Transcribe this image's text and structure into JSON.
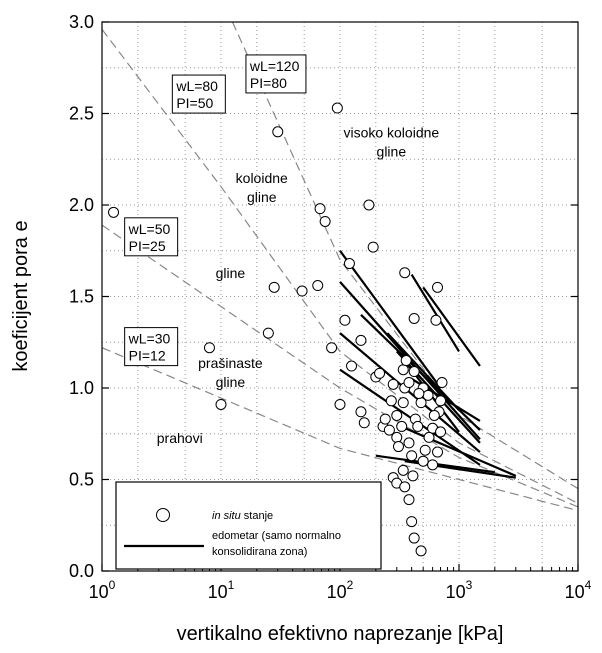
{
  "chart_data": {
    "type": "scatter",
    "xlabel": "vertikalno efektivno naprezanje [kPa]",
    "ylabel": "koeficijent pora e",
    "x_scale": "log",
    "xlim": [
      1,
      10000
    ],
    "ylim": [
      0,
      3
    ],
    "x_ticks": [
      {
        "value": 1,
        "base": "10",
        "exp": "0"
      },
      {
        "value": 10,
        "base": "10",
        "exp": "1"
      },
      {
        "value": 100,
        "base": "10",
        "exp": "2"
      },
      {
        "value": 1000,
        "base": "10",
        "exp": "3"
      },
      {
        "value": 10000,
        "base": "10",
        "exp": "4"
      }
    ],
    "y_ticks": [
      {
        "value": 0.0,
        "label": "0.0"
      },
      {
        "value": 0.5,
        "label": "0.5"
      },
      {
        "value": 1.0,
        "label": "1.0"
      },
      {
        "value": 1.5,
        "label": "1.5"
      },
      {
        "value": 2.0,
        "label": "2.0"
      },
      {
        "value": 2.5,
        "label": "2.5"
      },
      {
        "value": 3.0,
        "label": "3.0"
      }
    ],
    "grid": true,
    "boundary_lines": [
      {
        "points": [
          [
            1,
            1.22
          ],
          [
            100,
            0.67
          ],
          [
            1000,
            0.5
          ],
          [
            10000,
            0.33
          ]
        ]
      },
      {
        "points": [
          [
            1,
            1.89
          ],
          [
            100,
            1.0
          ],
          [
            1000,
            0.62
          ],
          [
            10000,
            0.35
          ]
        ]
      },
      {
        "points": [
          [
            1,
            2.96
          ],
          [
            10,
            2.1
          ],
          [
            100,
            1.2
          ],
          [
            1000,
            0.7
          ],
          [
            10000,
            0.37
          ]
        ]
      },
      {
        "points": [
          [
            12.5,
            3.0
          ],
          [
            100,
            1.7
          ],
          [
            1000,
            0.85
          ],
          [
            10000,
            0.45
          ]
        ]
      }
    ],
    "boundary_labels": [
      {
        "line1": "wL=30",
        "line2": "PI=12",
        "x": 1.55,
        "y": 1.33
      },
      {
        "line1": "wL=50",
        "line2": "PI=25",
        "x": 1.55,
        "y": 1.93
      },
      {
        "line1": "wL=80",
        "line2": "PI=50",
        "x": 3.9,
        "y": 2.71
      },
      {
        "line1": "wL=120",
        "line2": "PI=80",
        "x": 16.2,
        "y": 2.82
      }
    ],
    "region_labels": [
      {
        "lines": [
          "prahovi"
        ],
        "x": 4.5,
        "y": 0.7
      },
      {
        "lines": [
          "prašinaste",
          "gline"
        ],
        "x": 12,
        "y": 1.11
      },
      {
        "lines": [
          "gline"
        ],
        "x": 12,
        "y": 1.6
      },
      {
        "lines": [
          "koloidne",
          "gline"
        ],
        "x": 22,
        "y": 2.12
      },
      {
        "lines": [
          "visoko koloidne",
          "gline"
        ],
        "x": 270,
        "y": 2.37
      }
    ],
    "in_situ_points": [
      [
        1.25,
        1.96
      ],
      [
        8,
        1.22
      ],
      [
        10,
        0.91
      ],
      [
        25,
        1.3
      ],
      [
        28,
        1.55
      ],
      [
        30,
        2.4
      ],
      [
        48,
        1.53
      ],
      [
        65,
        1.56
      ],
      [
        68,
        1.98
      ],
      [
        75,
        1.91
      ],
      [
        85,
        1.22
      ],
      [
        95,
        2.53
      ],
      [
        100,
        0.91
      ],
      [
        110,
        1.37
      ],
      [
        120,
        1.68
      ],
      [
        125,
        1.12
      ],
      [
        150,
        1.26
      ],
      [
        150,
        0.87
      ],
      [
        160,
        0.81
      ],
      [
        175,
        2.0
      ],
      [
        190,
        1.77
      ],
      [
        200,
        1.06
      ],
      [
        215,
        1.08
      ],
      [
        230,
        0.79
      ],
      [
        240,
        0.83
      ],
      [
        260,
        0.77
      ],
      [
        280,
        1.02
      ],
      [
        300,
        0.85
      ],
      [
        300,
        0.73
      ],
      [
        330,
        0.79
      ],
      [
        340,
        0.92
      ],
      [
        340,
        1.1
      ],
      [
        350,
        1.63
      ],
      [
        350,
        1.0
      ],
      [
        400,
        0.63
      ],
      [
        410,
        0.52
      ],
      [
        420,
        1.38
      ],
      [
        430,
        0.83
      ],
      [
        480,
        0.92
      ],
      [
        500,
        1.0
      ],
      [
        550,
        0.96
      ],
      [
        600,
        0.78
      ],
      [
        640,
        1.37
      ],
      [
        660,
        1.55
      ],
      [
        680,
        0.87
      ],
      [
        700,
        0.93
      ],
      [
        720,
        1.03
      ],
      [
        660,
        0.65
      ],
      [
        280,
        0.51
      ],
      [
        300,
        0.48
      ],
      [
        340,
        0.55
      ],
      [
        350,
        0.46
      ],
      [
        380,
        0.39
      ],
      [
        400,
        0.27
      ],
      [
        420,
        0.18
      ],
      [
        480,
        0.11
      ],
      [
        500,
        0.6
      ],
      [
        560,
        0.73
      ],
      [
        380,
        0.7
      ],
      [
        600,
        0.58
      ],
      [
        450,
        0.79
      ],
      [
        520,
        0.66
      ],
      [
        360,
        1.15
      ],
      [
        420,
        1.09
      ],
      [
        380,
        1.03
      ],
      [
        460,
        0.97
      ],
      [
        620,
        0.85
      ],
      [
        700,
        0.76
      ],
      [
        270,
        0.93
      ],
      [
        310,
        0.68
      ]
    ],
    "oedometer_lines": [
      [
        [
          100,
          1.75
        ],
        [
          700,
          1.0
        ]
      ],
      [
        [
          100,
          1.58
        ],
        [
          1500,
          0.72
        ]
      ],
      [
        [
          100,
          1.3
        ],
        [
          1500,
          0.65
        ]
      ],
      [
        [
          100,
          1.1
        ],
        [
          1500,
          0.58
        ]
      ],
      [
        [
          150,
          1.4
        ],
        [
          1500,
          0.77
        ]
      ],
      [
        [
          250,
          1.3
        ],
        [
          1000,
          0.88
        ]
      ],
      [
        [
          300,
          1.2
        ],
        [
          1500,
          0.7
        ]
      ],
      [
        [
          330,
          1.17
        ],
        [
          1000,
          0.76
        ]
      ],
      [
        [
          400,
          1.62
        ],
        [
          1000,
          1.2
        ]
      ],
      [
        [
          500,
          1.55
        ],
        [
          1500,
          1.12
        ]
      ],
      [
        [
          350,
          0.6
        ],
        [
          3000,
          0.51
        ]
      ],
      [
        [
          200,
          0.63
        ],
        [
          2000,
          0.54
        ]
      ],
      [
        [
          300,
          0.8
        ],
        [
          3000,
          0.52
        ]
      ],
      [
        [
          400,
          1.05
        ],
        [
          1500,
          0.82
        ]
      ]
    ],
    "legend": {
      "position": "bottom-left",
      "items": [
        {
          "marker": "circle",
          "italic": "in situ",
          "label": " stanje"
        },
        {
          "marker": "line",
          "label_lines": [
            "edometar (samo normalno",
            "konsolidirana zona)"
          ]
        }
      ]
    }
  }
}
